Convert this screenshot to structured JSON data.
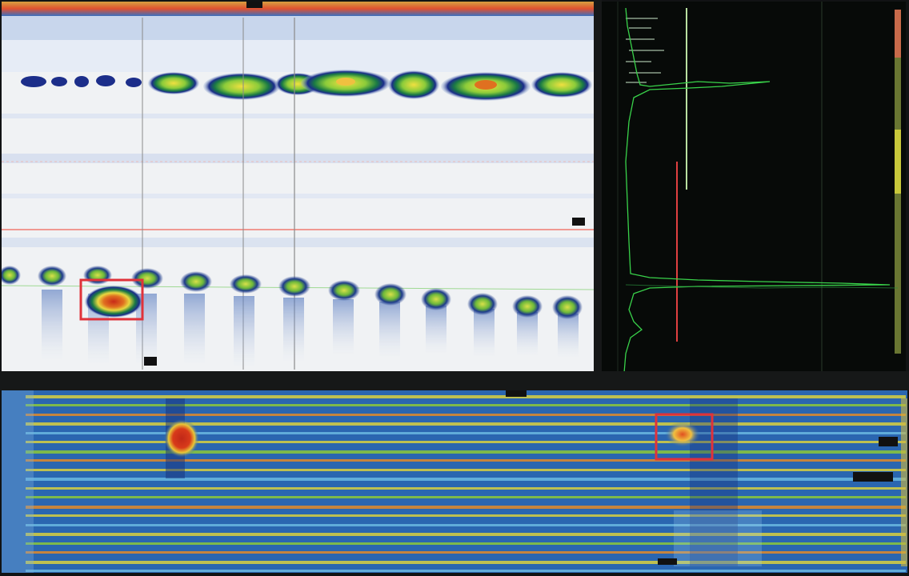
{
  "window": {
    "title": ""
  },
  "cscan_panel": {
    "name": "c-scan-view",
    "defect_box_color": "#e0323a",
    "cursor_color": "#ff6a5a",
    "gate_color": "#8a8a8a",
    "palette": [
      "#ffffff",
      "#9fb7da",
      "#2c3f9c",
      "#1a8a3a",
      "#8cd13a",
      "#f0e63a",
      "#f0902a",
      "#d02a1a"
    ]
  },
  "ascan_panel": {
    "name": "a-scan-view",
    "trace_color": "#39d24a",
    "gate_color": "#e04040",
    "cursor_color": "#b8e0a0",
    "background": "#070a08"
  },
  "bscan_panel": {
    "name": "b-scan-view",
    "defect_box_color": "#e0323a"
  },
  "colors": {
    "accent_red": "#e0323a",
    "background": "#111314"
  },
  "icons": [
    "marker-icon"
  ]
}
